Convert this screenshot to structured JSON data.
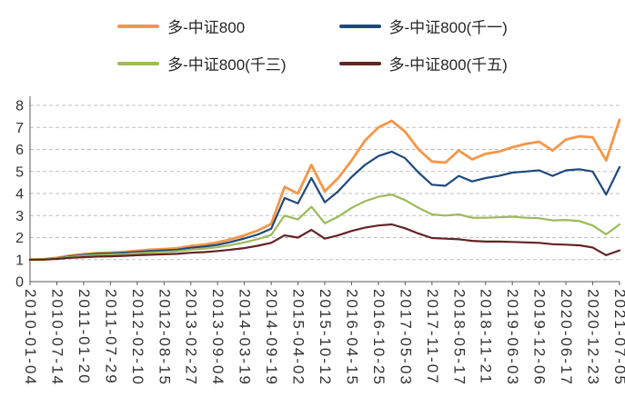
{
  "colors": {
    "background": "#FFFFFF",
    "grid": "#BFBFBF",
    "axis": "#595959",
    "text": "#333333"
  },
  "chart_data": {
    "type": "line",
    "title": "",
    "xlabel": "",
    "ylabel": "",
    "ylim": [
      0,
      8
    ],
    "yticks": [
      0,
      1,
      2,
      3,
      4,
      5,
      6,
      7,
      8
    ],
    "grid": "horizontal-dashed",
    "legend_position": "top-center-two-columns",
    "x_tick_labels": [
      "2010-01-04",
      "2010-07-14",
      "2011-01-20",
      "2011-07-29",
      "2012-02-10",
      "2012-08-15",
      "2013-02-27",
      "2013-09-04",
      "2014-03-19",
      "2014-09-19",
      "2015-04-02",
      "2015-10-12",
      "2016-04-15",
      "2016-10-25",
      "2017-05-03",
      "2017-11-07",
      "2018-05-17",
      "2018-11-21",
      "2019-06-03",
      "2019-12-06",
      "2020-06-17",
      "2020-12-23",
      "2021-07-05"
    ],
    "tick_step": 2,
    "note": "series values are sampled evenly across the x axis; every 2nd point falls on a labeled tick",
    "series": [
      {
        "name": "多-中证800",
        "color": "#F79646",
        "values": [
          1.0,
          1.02,
          1.08,
          1.18,
          1.25,
          1.3,
          1.32,
          1.35,
          1.4,
          1.45,
          1.48,
          1.52,
          1.62,
          1.68,
          1.78,
          1.92,
          2.1,
          2.32,
          2.62,
          4.3,
          4.0,
          5.3,
          4.1,
          4.7,
          5.5,
          6.4,
          7.0,
          7.3,
          6.8,
          6.0,
          5.45,
          5.4,
          5.95,
          5.55,
          5.8,
          5.9,
          6.1,
          6.25,
          6.35,
          5.95,
          6.45,
          6.6,
          6.55,
          5.5,
          7.35
        ]
      },
      {
        "name": "多-中证800(千一)",
        "color": "#1F497D",
        "values": [
          1.0,
          1.01,
          1.06,
          1.15,
          1.21,
          1.26,
          1.28,
          1.31,
          1.35,
          1.39,
          1.42,
          1.45,
          1.54,
          1.59,
          1.67,
          1.8,
          1.96,
          2.14,
          2.4,
          3.8,
          3.55,
          4.7,
          3.6,
          4.1,
          4.75,
          5.3,
          5.7,
          5.9,
          5.6,
          4.95,
          4.4,
          4.35,
          4.8,
          4.55,
          4.7,
          4.8,
          4.95,
          5.0,
          5.05,
          4.8,
          5.05,
          5.1,
          5.0,
          3.95,
          5.2
        ]
      },
      {
        "name": "多-中证800(千三)",
        "color": "#9BBB59",
        "values": [
          1.0,
          1.01,
          1.05,
          1.12,
          1.17,
          1.21,
          1.23,
          1.25,
          1.29,
          1.32,
          1.35,
          1.38,
          1.45,
          1.5,
          1.56,
          1.66,
          1.78,
          1.93,
          2.12,
          3.0,
          2.82,
          3.4,
          2.65,
          2.95,
          3.35,
          3.65,
          3.85,
          3.95,
          3.7,
          3.35,
          3.05,
          3.0,
          3.05,
          2.9,
          2.9,
          2.92,
          2.95,
          2.9,
          2.88,
          2.78,
          2.8,
          2.75,
          2.55,
          2.15,
          2.6
        ]
      },
      {
        "name": "多-中证800(千五)",
        "color": "#632423",
        "values": [
          1.0,
          1.0,
          1.03,
          1.08,
          1.11,
          1.14,
          1.15,
          1.17,
          1.2,
          1.22,
          1.24,
          1.26,
          1.31,
          1.34,
          1.39,
          1.45,
          1.52,
          1.63,
          1.76,
          2.1,
          2.0,
          2.35,
          1.95,
          2.1,
          2.3,
          2.45,
          2.55,
          2.6,
          2.42,
          2.18,
          1.98,
          1.95,
          1.92,
          1.85,
          1.82,
          1.82,
          1.8,
          1.78,
          1.76,
          1.7,
          1.68,
          1.65,
          1.55,
          1.2,
          1.42
        ]
      }
    ]
  }
}
